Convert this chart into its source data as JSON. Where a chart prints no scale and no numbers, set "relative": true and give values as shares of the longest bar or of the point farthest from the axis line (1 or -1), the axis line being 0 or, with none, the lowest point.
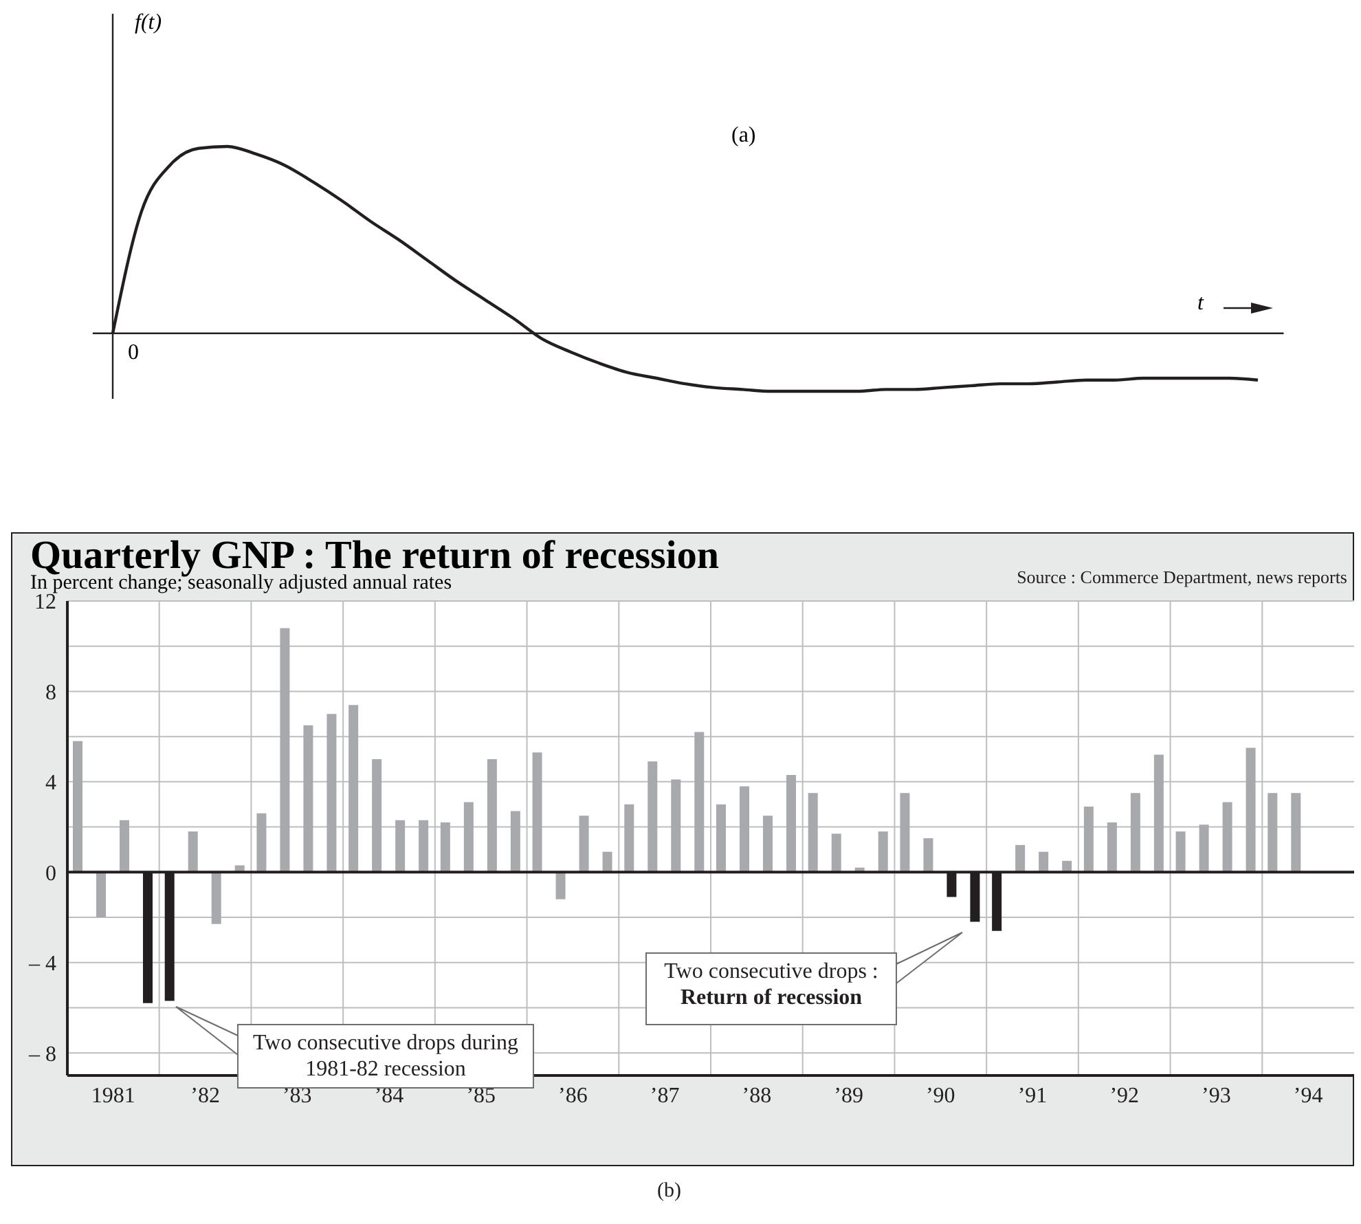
{
  "chart_data": [
    {
      "type": "line",
      "relative": true,
      "xlabel": "t",
      "ylabel": "f(t)",
      "marker": "none",
      "color": "#231f20",
      "annotations": [
        "(a)",
        "0"
      ],
      "categories": [
        null,
        null,
        null,
        null,
        null,
        null,
        null,
        null,
        null,
        null,
        null,
        null,
        null,
        null,
        null,
        null,
        null,
        null,
        null,
        null,
        null,
        null,
        null,
        null,
        null,
        null,
        null,
        null,
        null,
        null,
        null,
        null,
        null,
        null,
        null,
        null,
        null,
        null,
        null,
        null,
        null
      ],
      "values": [
        0,
        0.65,
        0.9,
        0.99,
        1.0,
        0.96,
        0.9,
        0.81,
        0.71,
        0.6,
        0.5,
        0.39,
        0.28,
        0.18,
        0.08,
        -0.03,
        -0.1,
        -0.16,
        -0.21,
        -0.24,
        -0.27,
        -0.29,
        -0.3,
        -0.31,
        -0.31,
        -0.31,
        -0.31,
        -0.3,
        -0.3,
        -0.29,
        -0.28,
        -0.27,
        -0.27,
        -0.26,
        -0.25,
        -0.25,
        -0.24,
        -0.24,
        -0.24,
        -0.24,
        -0.25
      ]
    },
    {
      "type": "bar",
      "title": "Quarterly GNP : The return of recession",
      "subtitle": "In percent change; seasonally adjusted annual rates",
      "annotations": [
        "Source : Commerce Department, news reports",
        "(b)",
        "Two consecutive drops during 1981-82 recession",
        "Two consecutive drops :\nReturn of recession"
      ],
      "categories": [
        "1981",
        "’82",
        "’83",
        "’84",
        "’85",
        "’86",
        "’87",
        "’88",
        "’89",
        "’90",
        "’91",
        "’92",
        "’93",
        "’94"
      ],
      "series": [
        {
          "values": [
            5.8,
            -5.7,
            2.6,
            7.4,
            2.2,
            5.3,
            3.0,
            3.0,
            3.5,
            3.5,
            -2.6,
            2.9,
            1.8,
            3.5
          ],
          "colors": [
            "#a7a9ac",
            "#231f20",
            "#a7a9ac",
            "#a7a9ac",
            "#a7a9ac",
            "#a7a9ac",
            "#a7a9ac",
            "#a7a9ac",
            "#a7a9ac",
            "#a7a9ac",
            "#231f20",
            "#a7a9ac",
            "#a7a9ac",
            "#a7a9ac"
          ]
        },
        {
          "values": [
            -2.0,
            1.8,
            10.8,
            5.0,
            3.1,
            -1.2,
            4.9,
            3.8,
            1.7,
            1.5,
            1.2,
            2.2,
            2.1,
            3.5
          ],
          "colors": [
            "#a7a9ac",
            "#a7a9ac",
            "#a7a9ac",
            "#a7a9ac",
            "#a7a9ac",
            "#a7a9ac",
            "#a7a9ac",
            "#a7a9ac",
            "#a7a9ac",
            "#a7a9ac",
            "#a7a9ac",
            "#a7a9ac",
            "#a7a9ac",
            "#a7a9ac"
          ]
        },
        {
          "values": [
            2.3,
            -2.3,
            6.5,
            2.3,
            5.0,
            2.5,
            4.1,
            2.5,
            0.2,
            -1.1,
            0.9,
            3.5,
            3.1,
            null
          ],
          "colors": [
            "#a7a9ac",
            "#a7a9ac",
            "#a7a9ac",
            "#a7a9ac",
            "#a7a9ac",
            "#a7a9ac",
            "#a7a9ac",
            "#a7a9ac",
            "#a7a9ac",
            "#231f20",
            "#a7a9ac",
            "#a7a9ac",
            "#a7a9ac",
            "#a7a9ac"
          ]
        },
        {
          "values": [
            -5.8,
            0.3,
            7.0,
            2.3,
            2.7,
            0.9,
            6.2,
            4.3,
            1.8,
            -2.2,
            0.5,
            5.2,
            5.5,
            null
          ],
          "colors": [
            "#231f20",
            "#a7a9ac",
            "#a7a9ac",
            "#a7a9ac",
            "#a7a9ac",
            "#a7a9ac",
            "#a7a9ac",
            "#a7a9ac",
            "#a7a9ac",
            "#231f20",
            "#a7a9ac",
            "#a7a9ac",
            "#a7a9ac",
            "#a7a9ac"
          ]
        }
      ],
      "ylim": [
        -9,
        12
      ],
      "yticks": [
        {
          "value": -8,
          "label": "– 8"
        },
        {
          "value": -6,
          "label": null
        },
        {
          "value": -4,
          "label": "– 4"
        },
        {
          "value": -2,
          "label": null
        },
        0,
        {
          "value": 2,
          "label": null
        },
        4,
        {
          "value": 6,
          "label": null
        },
        8,
        {
          "value": 10,
          "label": null
        },
        12
      ],
      "grid": true,
      "ref_lines": [
        {
          "axis": "y",
          "value": 0,
          "color": "#231f20"
        }
      ]
    }
  ]
}
